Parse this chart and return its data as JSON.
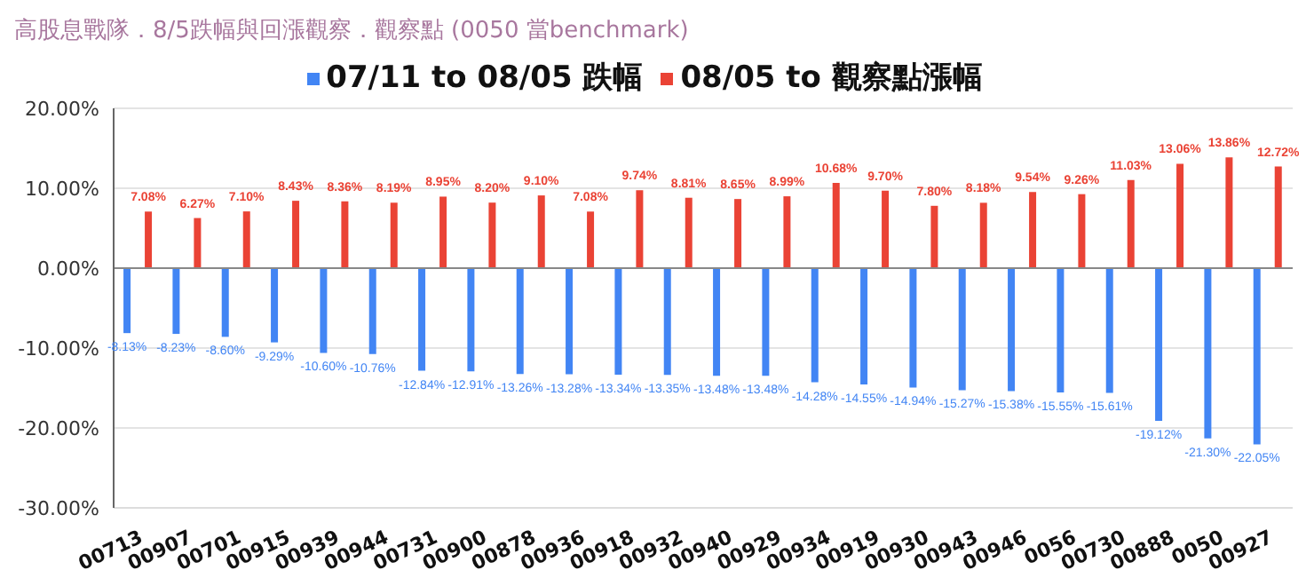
{
  "chart_data": {
    "type": "bar",
    "title": "高股息戰隊．8/5跌幅與回漲觀察．觀察點 (0050 當benchmark)",
    "categories": [
      "00713",
      "00907",
      "00701",
      "00915",
      "00939",
      "00944",
      "00731",
      "00900",
      "00878",
      "00936",
      "00918",
      "00932",
      "00940",
      "00929",
      "00934",
      "00919",
      "00930",
      "00943",
      "00946",
      "0056",
      "00730",
      "00888",
      "0050",
      "00927"
    ],
    "series": [
      {
        "name": "07/11 to 08/05 跌幅",
        "color": "#4285f4",
        "values": [
          -8.13,
          -8.23,
          -8.6,
          -9.29,
          -10.6,
          -10.76,
          -12.84,
          -12.91,
          -13.26,
          -13.28,
          -13.34,
          -13.35,
          -13.48,
          -13.48,
          -14.28,
          -14.55,
          -14.94,
          -15.27,
          -15.38,
          -15.55,
          -15.61,
          -19.12,
          -21.3,
          -22.05
        ],
        "value_labels": [
          "-8.13%",
          "-8.23%",
          "-8.60%",
          "-9.29%",
          "-10.60%",
          "-10.76%",
          "-12.84%",
          "-12.91%",
          "-13.26%",
          "-13.28%",
          "-13.34%",
          "-13.35%",
          "-13.48%",
          "-13.48%",
          "-14.28%",
          "-14.55%",
          "-14.94%",
          "-15.27%",
          "-15.38%",
          "-15.55%",
          "-15.61%",
          "-19.12%",
          "-21.30%",
          "-22.05%"
        ]
      },
      {
        "name": "08/05 to 觀察點漲幅",
        "color": "#ea4335",
        "values": [
          7.08,
          6.27,
          7.1,
          8.43,
          8.36,
          8.19,
          8.95,
          8.2,
          9.1,
          7.08,
          9.74,
          8.81,
          8.65,
          8.99,
          10.68,
          9.7,
          7.8,
          8.18,
          9.54,
          9.26,
          11.03,
          13.06,
          13.86,
          12.72
        ],
        "value_labels": [
          "7.08%",
          "6.27%",
          "7.10%",
          "8.43%",
          "8.36%",
          "8.19%",
          "8.95%",
          "8.20%",
          "9.10%",
          "7.08%",
          "9.74%",
          "8.81%",
          "8.65%",
          "8.99%",
          "10.68%",
          "9.70%",
          "7.80%",
          "8.18%",
          "9.54%",
          "9.26%",
          "11.03%",
          "13.06%",
          "13.86%",
          "12.72%"
        ]
      }
    ],
    "ylim": [
      -30,
      20
    ],
    "yticks": [
      {
        "value": -30,
        "label": "-30.00%"
      },
      {
        "value": -20,
        "label": "-20.00%"
      },
      {
        "value": -10,
        "label": "-10.00%"
      },
      {
        "value": 0,
        "label": "0.00%"
      },
      {
        "value": 10,
        "label": "10.00%"
      },
      {
        "value": 20,
        "label": "20.00%"
      }
    ],
    "grid": "y",
    "legend": "top"
  }
}
